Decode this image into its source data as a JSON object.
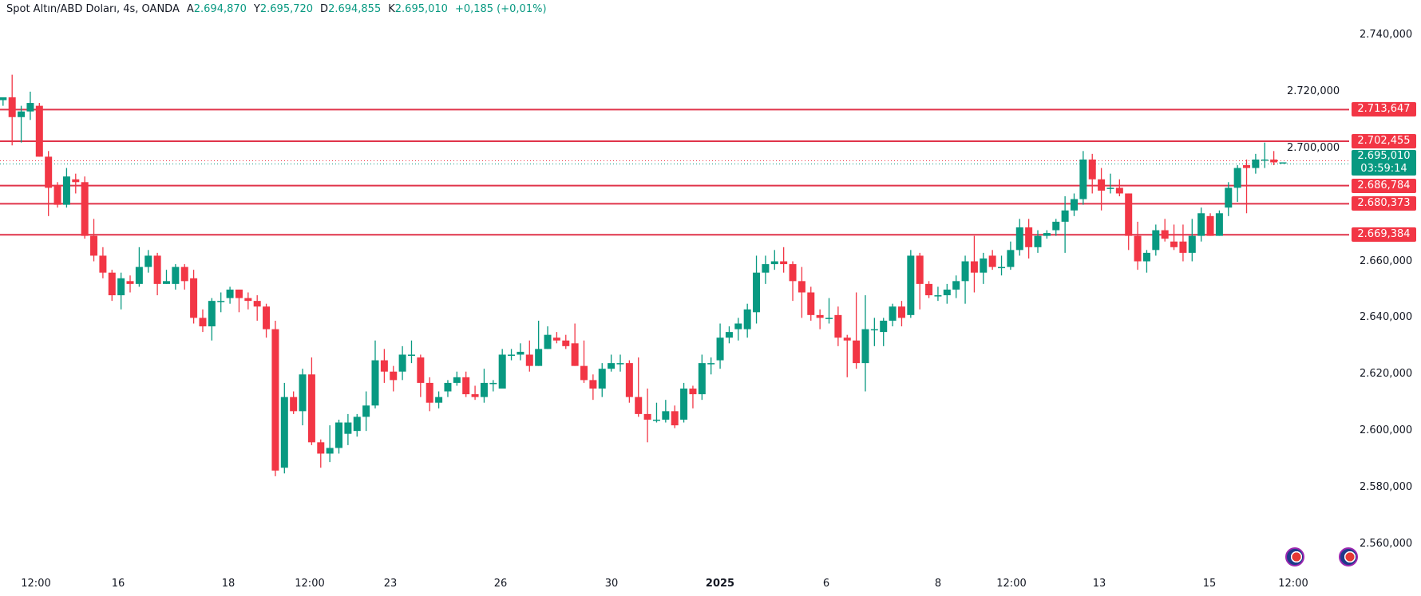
{
  "legend": {
    "symbol": "Spot Altın/ABD Doları, 4s, OANDA",
    "open_label": "A",
    "open": "2.694,870",
    "high_label": "Y",
    "high": "2.695,720",
    "low_label": "D",
    "low": "2.694,855",
    "close_label": "K",
    "close": "2.695,010",
    "change": "+0,185 (+0,01%)"
  },
  "price_axis": [
    "2.740,000",
    "2.720,000",
    "2.700,000",
    "2.660,000",
    "2.640,000",
    "2.620,000",
    "2.600,000",
    "2.580,000",
    "2.560,000"
  ],
  "levels": [
    {
      "label": "2.713,647",
      "value": 2713.647
    },
    {
      "label": "2.702,455",
      "value": 2702.455
    },
    {
      "label": "2.686,784",
      "value": 2686.784
    },
    {
      "label": "2.680,373",
      "value": 2680.373
    },
    {
      "label": "2.669,384",
      "value": 2669.384
    }
  ],
  "current_price": {
    "label": "2.695,010",
    "value": 2695.01,
    "countdown": "03:59:14"
  },
  "time_axis": [
    "12:00",
    "16",
    "18",
    "12:00",
    "23",
    "26",
    "30",
    "2025",
    "6",
    "8",
    "12:00",
    "13",
    "15",
    "12:00"
  ],
  "colors": {
    "up": "#089981",
    "down": "#f23645",
    "level": "#e0344a"
  },
  "icons": [
    "us-flag-icon",
    "us-flag-icon"
  ],
  "chart_data": {
    "type": "candlestick",
    "ylim": [
      2550,
      2745
    ],
    "ohlc": [
      [
        2717,
        2718,
        2715,
        2718
      ],
      [
        2718,
        2726,
        2701,
        2711
      ],
      [
        2711,
        2715,
        2702,
        2713
      ],
      [
        2713,
        2720,
        2710,
        2716
      ],
      [
        2715,
        2716,
        2697,
        2697
      ],
      [
        2697,
        2699,
        2676,
        2686
      ],
      [
        2687,
        2688,
        2679,
        2680
      ],
      [
        2680,
        2693,
        2679,
        2690
      ],
      [
        2689,
        2691,
        2684,
        2688
      ],
      [
        2688,
        2690,
        2668,
        2669
      ],
      [
        2669,
        2675,
        2660,
        2662
      ],
      [
        2662,
        2665,
        2654,
        2656
      ],
      [
        2656,
        2657,
        2646,
        2648
      ],
      [
        2648,
        2656,
        2643,
        2654
      ],
      [
        2653,
        2655,
        2649,
        2652
      ],
      [
        2652,
        2665,
        2651,
        2658
      ],
      [
        2658,
        2664,
        2656,
        2662
      ],
      [
        2662,
        2663,
        2648,
        2652
      ],
      [
        2652,
        2657,
        2652,
        2653
      ],
      [
        2652,
        2659,
        2650,
        2658
      ],
      [
        2658,
        2659,
        2650,
        2653
      ],
      [
        2654,
        2657,
        2638,
        2640
      ],
      [
        2640,
        2643,
        2635,
        2637
      ],
      [
        2637,
        2647,
        2632,
        2646
      ],
      [
        2646,
        2649,
        2642,
        2646
      ],
      [
        2647,
        2651,
        2645,
        2650
      ],
      [
        2650,
        2650,
        2642,
        2647
      ],
      [
        2647,
        2649,
        2643,
        2646
      ],
      [
        2646,
        2648,
        2639,
        2644
      ],
      [
        2644,
        2645,
        2633,
        2636
      ],
      [
        2636,
        2639,
        2584,
        2586
      ],
      [
        2587,
        2617,
        2585,
        2612
      ],
      [
        2612,
        2614,
        2606,
        2607
      ],
      [
        2607,
        2622,
        2602,
        2620
      ],
      [
        2620,
        2626,
        2595,
        2596
      ],
      [
        2596,
        2597,
        2587,
        2592
      ],
      [
        2592,
        2602,
        2589,
        2594
      ],
      [
        2594,
        2604,
        2592,
        2603
      ],
      [
        2599,
        2606,
        2595,
        2603
      ],
      [
        2600,
        2606,
        2598,
        2605
      ],
      [
        2605,
        2614,
        2600,
        2609
      ],
      [
        2609,
        2632,
        2608,
        2625
      ],
      [
        2625,
        2629,
        2617,
        2621
      ],
      [
        2621,
        2623,
        2614,
        2618
      ],
      [
        2621,
        2630,
        2618,
        2627
      ],
      [
        2627,
        2632,
        2624,
        2627
      ],
      [
        2626,
        2627,
        2612,
        2617
      ],
      [
        2617,
        2619,
        2607,
        2610
      ],
      [
        2610,
        2614,
        2608,
        2612
      ],
      [
        2614,
        2618,
        2612,
        2617
      ],
      [
        2617,
        2621,
        2616,
        2619
      ],
      [
        2619,
        2621,
        2612,
        2613
      ],
      [
        2613,
        2616,
        2611,
        2612
      ],
      [
        2612,
        2622,
        2610,
        2617
      ],
      [
        2617,
        2618,
        2614,
        2617
      ],
      [
        2615,
        2629,
        2615,
        2627
      ],
      [
        2627,
        2629,
        2625,
        2627
      ],
      [
        2627,
        2631,
        2625,
        2628
      ],
      [
        2627,
        2632,
        2621,
        2623
      ],
      [
        2623,
        2639,
        2623,
        2629
      ],
      [
        2629,
        2637,
        2629,
        2634
      ],
      [
        2633,
        2635,
        2631,
        2632
      ],
      [
        2632,
        2634,
        2629,
        2630
      ],
      [
        2631,
        2638,
        2623,
        2623
      ],
      [
        2623,
        2632,
        2617,
        2618
      ],
      [
        2618,
        2620,
        2611,
        2615
      ],
      [
        2615,
        2624,
        2612,
        2622
      ],
      [
        2622,
        2627,
        2621,
        2624
      ],
      [
        2624,
        2627,
        2621,
        2624
      ],
      [
        2624,
        2625,
        2610,
        2612
      ],
      [
        2612,
        2626,
        2605,
        2606
      ],
      [
        2606,
        2615,
        2596,
        2604
      ],
      [
        2604,
        2610,
        2603,
        2604
      ],
      [
        2604,
        2611,
        2603,
        2607
      ],
      [
        2607,
        2609,
        2601,
        2602
      ],
      [
        2604,
        2617,
        2603,
        2615
      ],
      [
        2615,
        2616,
        2608,
        2613
      ],
      [
        2613,
        2627,
        2611,
        2624
      ],
      [
        2624,
        2626,
        2620,
        2624
      ],
      [
        2625,
        2638,
        2622,
        2633
      ],
      [
        2633,
        2637,
        2631,
        2635
      ],
      [
        2636,
        2640,
        2632,
        2638
      ],
      [
        2636,
        2645,
        2633,
        2643
      ],
      [
        2642,
        2662,
        2638,
        2656
      ],
      [
        2656,
        2662,
        2652,
        2659
      ],
      [
        2659,
        2664,
        2657,
        2660
      ],
      [
        2660,
        2665,
        2656,
        2659
      ],
      [
        2659,
        2660,
        2646,
        2653
      ],
      [
        2653,
        2658,
        2640,
        2649
      ],
      [
        2649,
        2651,
        2639,
        2641
      ],
      [
        2641,
        2643,
        2636,
        2640
      ],
      [
        2640,
        2647,
        2638,
        2640
      ],
      [
        2641,
        2644,
        2630,
        2633
      ],
      [
        2633,
        2634,
        2619,
        2632
      ],
      [
        2632,
        2649,
        2622,
        2624
      ],
      [
        2624,
        2648,
        2614,
        2636
      ],
      [
        2636,
        2640,
        2630,
        2636
      ],
      [
        2635,
        2640,
        2630,
        2639
      ],
      [
        2639,
        2645,
        2637,
        2644
      ],
      [
        2644,
        2646,
        2637,
        2640
      ],
      [
        2641,
        2664,
        2640,
        2662
      ],
      [
        2662,
        2663,
        2643,
        2652
      ],
      [
        2652,
        2653,
        2647,
        2648
      ],
      [
        2648,
        2651,
        2646,
        2648
      ],
      [
        2648,
        2652,
        2645,
        2650
      ],
      [
        2650,
        2655,
        2647,
        2653
      ],
      [
        2653,
        2662,
        2645,
        2660
      ],
      [
        2660,
        2669,
        2649,
        2656
      ],
      [
        2656,
        2663,
        2652,
        2661
      ],
      [
        2662,
        2664,
        2657,
        2658
      ],
      [
        2658,
        2662,
        2655,
        2658
      ],
      [
        2658,
        2667,
        2657,
        2664
      ],
      [
        2664,
        2675,
        2662,
        2672
      ],
      [
        2672,
        2675,
        2661,
        2665
      ],
      [
        2665,
        2671,
        2663,
        2669
      ],
      [
        2669,
        2671,
        2668,
        2670
      ],
      [
        2671,
        2675,
        2669,
        2674
      ],
      [
        2674,
        2683,
        2663,
        2678
      ],
      [
        2678,
        2684,
        2676,
        2682
      ],
      [
        2682,
        2699,
        2680,
        2696
      ],
      [
        2696,
        2698,
        2684,
        2689
      ],
      [
        2689,
        2693,
        2678,
        2685
      ],
      [
        2686,
        2691,
        2684,
        2686
      ],
      [
        2686,
        2689,
        2683,
        2684
      ],
      [
        2684,
        2684,
        2664,
        2669
      ],
      [
        2669,
        2674,
        2657,
        2660
      ],
      [
        2660,
        2664,
        2656,
        2663
      ],
      [
        2664,
        2673,
        2662,
        2671
      ],
      [
        2671,
        2675,
        2667,
        2668
      ],
      [
        2667,
        2673,
        2664,
        2665
      ],
      [
        2667,
        2673,
        2660,
        2663
      ],
      [
        2663,
        2675,
        2660,
        2669
      ],
      [
        2669,
        2679,
        2667,
        2677
      ],
      [
        2676,
        2677,
        2669,
        2669
      ],
      [
        2669,
        2678,
        2669,
        2677
      ],
      [
        2679,
        2688,
        2676,
        2686
      ],
      [
        2686,
        2694,
        2681,
        2693
      ],
      [
        2694,
        2696,
        2677,
        2693
      ],
      [
        2693,
        2698,
        2691,
        2696
      ],
      [
        2696,
        2702,
        2693,
        2696
      ],
      [
        2696,
        2699,
        2694,
        2695
      ],
      [
        2695,
        2695,
        2695,
        2695
      ]
    ]
  }
}
